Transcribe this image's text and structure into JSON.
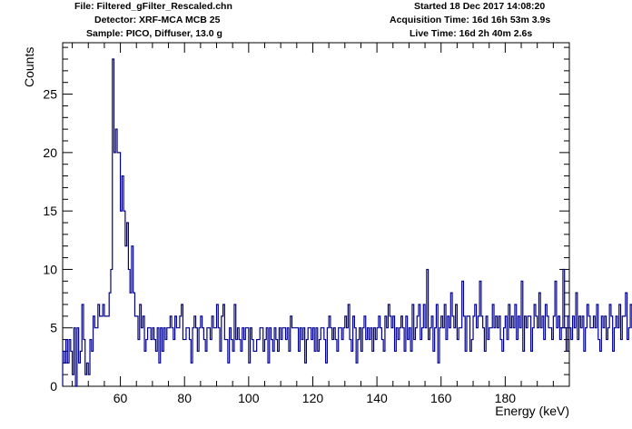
{
  "header": {
    "file": "File: Filtered_gFilter_Rescaled.chn",
    "detector": "Detector: XRF-MCA MCB 25",
    "sample": "Sample: PICO, Diffuser, 13.0 g",
    "started": "Started 18 Dec 2017 14:08:20",
    "acquisition": "Acquisition Time: 16d 16h 53m 3.9s",
    "live": "Live Time: 16d 2h 40m 2.6s"
  },
  "chart_data": {
    "type": "histogram",
    "xlabel": "Energy (keV)",
    "ylabel": "Counts",
    "xlim": [
      42,
      200
    ],
    "ylim": [
      0,
      29.4
    ],
    "xticks": [
      60,
      80,
      100,
      120,
      140,
      160,
      180
    ],
    "yticks": [
      0,
      5,
      10,
      15,
      20,
      25
    ],
    "line_color": "#00008b",
    "bin_width": 0.5,
    "x_start": 42,
    "values": [
      3,
      2,
      4,
      2,
      4,
      3,
      1,
      5,
      0,
      5,
      2,
      3,
      7,
      4,
      1,
      2,
      1,
      4,
      3,
      6,
      5,
      5,
      7,
      6,
      6,
      7,
      6,
      6,
      6,
      8,
      10,
      28,
      20,
      22,
      20,
      20,
      15,
      18,
      15,
      12,
      14,
      10,
      8,
      12,
      8,
      6,
      6,
      4,
      7,
      5,
      6,
      3,
      4,
      5,
      5,
      4,
      5,
      4,
      3,
      5,
      2,
      5,
      3,
      5,
      4,
      5,
      5,
      6,
      5,
      4,
      6,
      5,
      5,
      6,
      7,
      4,
      4,
      5,
      5,
      4,
      2,
      5,
      6,
      5,
      3,
      5,
      6,
      5,
      4,
      3,
      5,
      5,
      4,
      6,
      5,
      5,
      7,
      5,
      3,
      6,
      7,
      4,
      4,
      2,
      5,
      4,
      3,
      7,
      4,
      5,
      4,
      3,
      5,
      4,
      5,
      5,
      2,
      5,
      4,
      3,
      3,
      4,
      4,
      5,
      5,
      3,
      4,
      5,
      2,
      5,
      4,
      3,
      5,
      4,
      3,
      5,
      4,
      5,
      5,
      4,
      5,
      3,
      6,
      5,
      5,
      5,
      5,
      3,
      5,
      4,
      5,
      2,
      4,
      5,
      5,
      4,
      5,
      3,
      5,
      3,
      4,
      5,
      5,
      4,
      2,
      5,
      6,
      5,
      4,
      5,
      4,
      3,
      5,
      5,
      4,
      5,
      6,
      5,
      7,
      4,
      3,
      6,
      5,
      2,
      4,
      5,
      3,
      5,
      6,
      4,
      5,
      4,
      5,
      3,
      5,
      4,
      5,
      6,
      5,
      4,
      3,
      6,
      5,
      7,
      6,
      5,
      6,
      3,
      5,
      4,
      5,
      6,
      5,
      3,
      6,
      4,
      5,
      3,
      7,
      4,
      5,
      6,
      7,
      4,
      5,
      7,
      5,
      10,
      4,
      5,
      6,
      3,
      5,
      7,
      2,
      5,
      6,
      5,
      7,
      4,
      6,
      5,
      8,
      6,
      5,
      7,
      4,
      5,
      5,
      9,
      6,
      3,
      6,
      6,
      3,
      4,
      6,
      7,
      5,
      6,
      9,
      6,
      5,
      3,
      6,
      4,
      5,
      5,
      7,
      5,
      6,
      5,
      6,
      4,
      3,
      5,
      6,
      4,
      7,
      5,
      6,
      5,
      7,
      4,
      6,
      5,
      9,
      3,
      6,
      5,
      6,
      6,
      3,
      5,
      7,
      6,
      5,
      8,
      5,
      6,
      4,
      7,
      6,
      5,
      5,
      4,
      6,
      9,
      5,
      6,
      4,
      5,
      10,
      5,
      3,
      6,
      5,
      4,
      6,
      5,
      8,
      4,
      6,
      5,
      6,
      3,
      5,
      7,
      6,
      5,
      5,
      6,
      5,
      7,
      4,
      3,
      6,
      5,
      6,
      4,
      5,
      7,
      6,
      3,
      5,
      6,
      5,
      7,
      4,
      6,
      6,
      8,
      4,
      5,
      7,
      5,
      6,
      4,
      6,
      5,
      5,
      6,
      4
    ]
  }
}
